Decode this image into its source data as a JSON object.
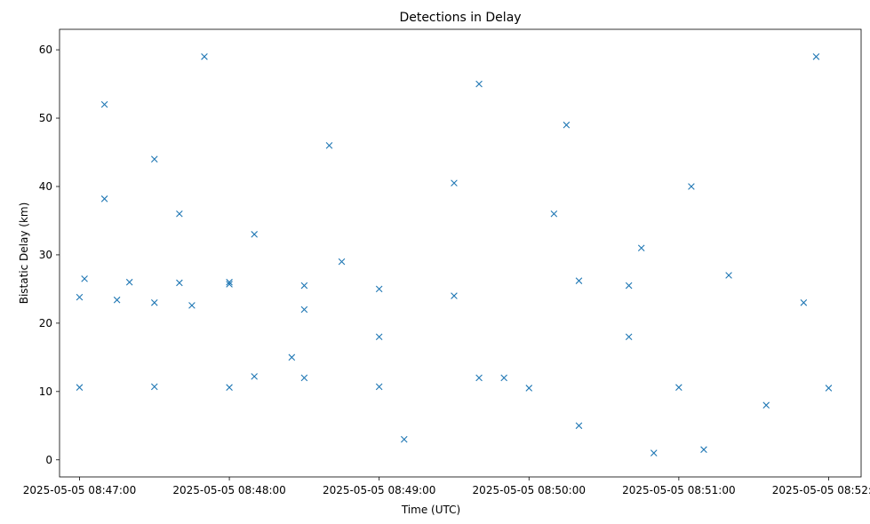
{
  "chart_data": {
    "type": "scatter",
    "title": "Detections in Delay",
    "xlabel": "Time (UTC)",
    "ylabel": "Bistatic Delay (km)",
    "xlim": [
      "2025-05-05 08:46:52",
      "2025-05-05 08:52:13"
    ],
    "ylim": [
      -2.5,
      63
    ],
    "x_ticks": [
      "2025-05-05 08:47:00",
      "2025-05-05 08:48:00",
      "2025-05-05 08:49:00",
      "2025-05-05 08:50:00",
      "2025-05-05 08:51:00",
      "2025-05-05 08:52:00"
    ],
    "y_ticks": [
      0,
      10,
      20,
      30,
      40,
      50,
      60
    ],
    "marker": "x",
    "marker_color": "#1f77b4",
    "grid": false,
    "series": [
      {
        "points": [
          [
            "2025-05-05 08:47:00",
            23.8
          ],
          [
            "2025-05-05 08:47:15",
            23.4
          ],
          [
            "2025-05-05 08:47:30",
            23.0
          ],
          [
            "2025-05-05 08:47:45",
            22.6
          ],
          [
            "2025-05-05 08:47:02",
            26.5
          ],
          [
            "2025-05-05 08:47:20",
            26.0
          ],
          [
            "2025-05-05 08:47:40",
            25.9
          ],
          [
            "2025-05-05 08:48:00",
            25.7
          ],
          [
            "2025-05-05 08:48:30",
            25.5
          ],
          [
            "2025-05-05 08:49:00",
            25.0
          ],
          [
            "2025-05-05 08:49:30",
            24.0
          ],
          [
            "2025-05-05 08:50:20",
            26.2
          ],
          [
            "2025-05-05 08:50:40",
            25.5
          ],
          [
            "2025-05-05 08:47:00",
            10.6
          ],
          [
            "2025-05-05 08:47:30",
            10.7
          ],
          [
            "2025-05-05 08:48:00",
            10.6
          ],
          [
            "2025-05-05 08:49:00",
            10.7
          ],
          [
            "2025-05-05 08:50:00",
            10.5
          ],
          [
            "2025-05-05 08:51:00",
            10.6
          ],
          [
            "2025-05-05 08:52:00",
            10.5
          ],
          [
            "2025-05-05 08:47:10",
            38.2
          ],
          [
            "2025-05-05 08:47:40",
            36.0
          ],
          [
            "2025-05-05 08:48:10",
            33.0
          ],
          [
            "2025-05-05 08:48:45",
            29.0
          ],
          [
            "2025-05-05 08:49:30",
            40.5
          ],
          [
            "2025-05-05 08:50:10",
            36.0
          ],
          [
            "2025-05-05 08:50:45",
            31.0
          ],
          [
            "2025-05-05 08:51:20",
            27.0
          ],
          [
            "2025-05-05 08:51:50",
            23.0
          ],
          [
            "2025-05-05 08:48:00",
            26.0
          ],
          [
            "2025-05-05 08:48:30",
            22.0
          ],
          [
            "2025-05-05 08:49:00",
            18.0
          ],
          [
            "2025-05-05 08:49:40",
            12.0
          ],
          [
            "2025-05-05 08:50:20",
            5.0
          ],
          [
            "2025-05-05 08:50:50",
            1.0
          ],
          [
            "2025-05-05 08:51:10",
            1.5
          ],
          [
            "2025-05-05 08:48:10",
            12.2
          ],
          [
            "2025-05-05 08:48:30",
            12.0
          ],
          [
            "2025-05-05 08:49:50",
            12.0
          ],
          [
            "2025-05-05 08:47:10",
            52.0
          ],
          [
            "2025-05-05 08:47:30",
            44.0
          ],
          [
            "2025-05-05 08:47:50",
            59.0
          ],
          [
            "2025-05-05 08:48:25",
            15.0
          ],
          [
            "2025-05-05 08:48:40",
            46.0
          ],
          [
            "2025-05-05 08:49:10",
            3.0
          ],
          [
            "2025-05-05 08:49:40",
            55.0
          ],
          [
            "2025-05-05 08:50:15",
            49.0
          ],
          [
            "2025-05-05 08:50:40",
            18.0
          ],
          [
            "2025-05-05 08:51:05",
            40.0
          ],
          [
            "2025-05-05 08:51:35",
            8.0
          ],
          [
            "2025-05-05 08:51:55",
            59.0
          ]
        ]
      }
    ]
  }
}
